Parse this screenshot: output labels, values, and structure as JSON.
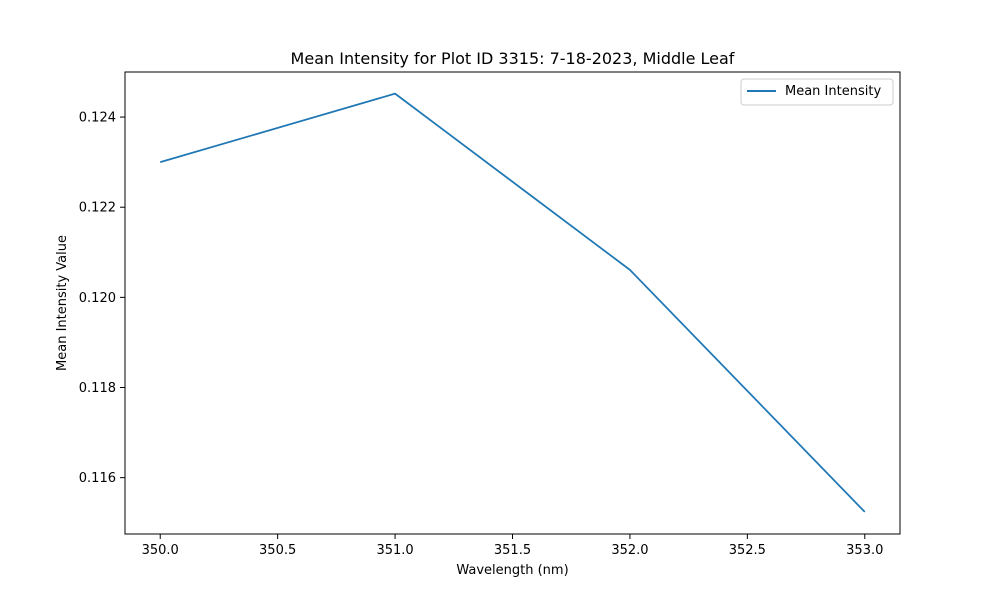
{
  "chart_data": {
    "type": "line",
    "title": "Mean Intensity for Plot ID 3315: 7-18-2023, Middle Leaf",
    "xlabel": "Wavelength (nm)",
    "ylabel": "Mean Intensity Value",
    "xlim": [
      349.85,
      353.15
    ],
    "ylim": [
      0.11475,
      0.125
    ],
    "xticks": [
      350.0,
      350.5,
      351.0,
      351.5,
      352.0,
      352.5,
      353.0
    ],
    "xtick_labels": [
      "350.0",
      "350.5",
      "351.0",
      "351.5",
      "352.0",
      "352.5",
      "353.0"
    ],
    "yticks": [
      0.116,
      0.118,
      0.12,
      0.122,
      0.124
    ],
    "ytick_labels": [
      "0.116",
      "0.118",
      "0.120",
      "0.122",
      "0.124"
    ],
    "grid": false,
    "legend_position": "top-right",
    "series": [
      {
        "name": "Mean Intensity",
        "color": "#1f77b4",
        "x": [
          350,
          351,
          352,
          353
        ],
        "y": [
          0.123,
          0.12452,
          0.12061,
          0.11524
        ]
      }
    ]
  }
}
